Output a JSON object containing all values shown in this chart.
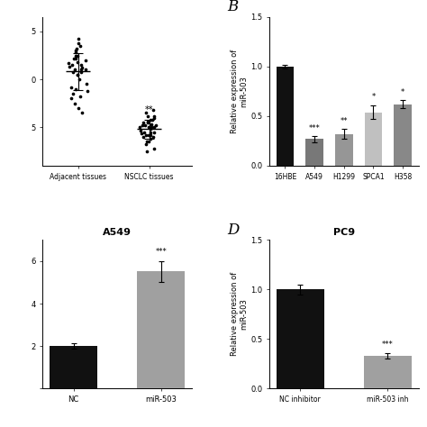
{
  "panel_A": {
    "group1_label": "Adjacent tissues",
    "group2_label": "NSCLC tissues",
    "group1_y": [
      0.1,
      0.25,
      0.15,
      0.2,
      0.05,
      0.18,
      -0.05,
      0.12,
      0.22,
      0.08,
      -0.1,
      0.3,
      0.0,
      0.17,
      0.13,
      0.28,
      -0.15,
      0.35,
      0.22,
      -0.2,
      0.1,
      0.05,
      0.38,
      -0.08,
      0.25,
      -0.3,
      0.15,
      -0.18,
      -0.25,
      0.32,
      0.1,
      -0.12,
      0.42,
      0.08,
      -0.35
    ],
    "group2_y": [
      -0.45,
      -0.55,
      -0.5,
      -0.48,
      -0.52,
      -0.6,
      -0.42,
      -0.58,
      -0.44,
      -0.56,
      -0.35,
      -0.65,
      -0.5,
      -0.47,
      -0.53,
      -0.62,
      -0.38,
      -0.68,
      -0.42,
      -0.72,
      -0.55,
      -0.48,
      -0.45,
      -0.58,
      -0.4,
      -0.75,
      -0.5,
      -0.55,
      -0.6,
      -0.32,
      -0.48,
      -0.65,
      -0.38,
      -0.5,
      -0.58
    ],
    "significance": "**",
    "ytick_positions": [
      -0.5,
      0.0,
      0.5
    ],
    "ytick_labels": [
      "5",
      "0",
      "5"
    ],
    "ylim": [
      -0.9,
      0.65
    ],
    "xlim": [
      0.5,
      2.6
    ]
  },
  "panel_B": {
    "label": "B",
    "categories": [
      "16HBE",
      "A549",
      "H1299",
      "SPCA1",
      "H358"
    ],
    "values": [
      1.0,
      0.27,
      0.32,
      0.54,
      0.62
    ],
    "errors": [
      0.02,
      0.03,
      0.05,
      0.07,
      0.04
    ],
    "colors": [
      "#111111",
      "#787878",
      "#969696",
      "#c0c0c0",
      "#888888"
    ],
    "ylabel": "Relative expression of\nmiR-503",
    "ylim": [
      0,
      1.5
    ],
    "yticks": [
      0.0,
      0.5,
      1.0,
      1.5
    ],
    "ytick_labels": [
      "0.0",
      "0.5",
      "1.0",
      "1.5"
    ],
    "significance": [
      "",
      "***",
      "**",
      "*",
      "*"
    ]
  },
  "panel_C": {
    "title": "A549",
    "categories": [
      "NC",
      "miR-503"
    ],
    "nc_val": 0.5,
    "mir_val": 1.38,
    "nc_err": 0.03,
    "mir_err": 0.12,
    "colors": [
      "#111111",
      "#a0a0a0"
    ],
    "significance_mir": "***",
    "ylim": [
      0,
      1.75
    ],
    "yticks": [
      0.0,
      0.5,
      1.0,
      1.5
    ],
    "ytick_labels": [
      "",
      "2",
      "4",
      "6"
    ],
    "ylabel_partial": true
  },
  "panel_D": {
    "label": "D",
    "title": "PC9",
    "categories": [
      "NC inhibitor",
      "miR-503 inh"
    ],
    "values": [
      1.0,
      0.33
    ],
    "errors": [
      0.05,
      0.03
    ],
    "colors": [
      "#111111",
      "#a0a0a0"
    ],
    "ylabel": "Relative expression of\nmiR-503",
    "ylim": [
      0,
      1.5
    ],
    "yticks": [
      0.0,
      0.5,
      1.0,
      1.5
    ],
    "ytick_labels": [
      "0.0",
      "0.5",
      "1.0",
      "1.5"
    ],
    "significance": [
      "",
      "***"
    ]
  }
}
